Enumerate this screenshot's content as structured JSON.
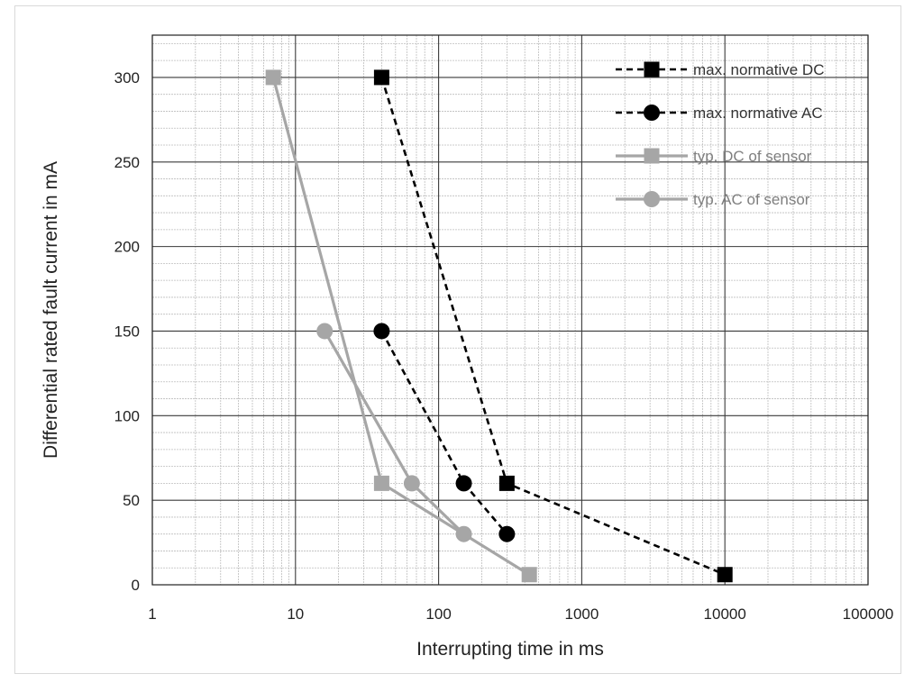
{
  "chart_data": {
    "type": "line",
    "title": "",
    "xlabel": "Interrupting time in ms",
    "ylabel": "Differential rated fault current in mA",
    "x_scale": "log",
    "xlim": [
      1,
      100000
    ],
    "ylim": [
      0,
      325
    ],
    "x_ticks": [
      1,
      10,
      100,
      1000,
      10000,
      100000
    ],
    "x_tick_labels": [
      "1",
      "10",
      "100",
      "1000",
      "10000",
      "100000"
    ],
    "y_ticks": [
      0,
      50,
      100,
      150,
      200,
      250,
      300
    ],
    "y_tick_labels": [
      "0",
      "50",
      "100",
      "150",
      "200",
      "250",
      "300"
    ],
    "grid": true,
    "legend_position": "top-right",
    "series": [
      {
        "name": "max. normative DC",
        "marker": "square",
        "line": "dashed",
        "color": "#000000",
        "points": [
          [
            40,
            300
          ],
          [
            300,
            60
          ],
          [
            10000,
            6
          ]
        ]
      },
      {
        "name": "max. normative AC",
        "marker": "circle",
        "line": "dashed",
        "color": "#000000",
        "points": [
          [
            40,
            150
          ],
          [
            150,
            60
          ],
          [
            300,
            30
          ]
        ]
      },
      {
        "name": "typ. DC of sensor",
        "marker": "square",
        "line": "solid",
        "color": "#a6a6a6",
        "points": [
          [
            7,
            300
          ],
          [
            40,
            60
          ],
          [
            430,
            6
          ]
        ]
      },
      {
        "name": "typ. AC of sensor",
        "marker": "circle",
        "line": "solid",
        "color": "#a6a6a6",
        "points": [
          [
            16,
            150
          ],
          [
            65,
            60
          ],
          [
            150,
            30
          ]
        ]
      }
    ]
  }
}
